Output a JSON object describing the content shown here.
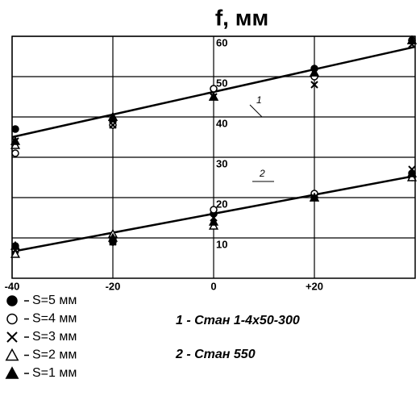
{
  "chart_data": {
    "type": "scatter",
    "title": "f, мм",
    "xlim": [
      -40,
      40
    ],
    "ylim": [
      0,
      60
    ],
    "xticks": [
      -40,
      -20,
      0,
      {
        "value": 20,
        "label": "+20"
      }
    ],
    "yticks": [
      10,
      20,
      30,
      40,
      50,
      60
    ],
    "grid": true,
    "x": [
      -40,
      -20,
      0,
      20,
      40,
      -40,
      -20,
      0,
      20,
      40
    ],
    "series": [
      {
        "name": "S=5 мм",
        "marker": "filled-circle",
        "color": "#000000",
        "values": [
          37,
          39,
          47,
          52,
          59,
          8,
          9,
          16,
          20,
          26
        ]
      },
      {
        "name": "S=4 мм",
        "marker": "circle",
        "color": "#000000",
        "values": [
          31,
          38,
          47,
          50,
          59,
          7,
          10,
          17,
          21,
          25
        ]
      },
      {
        "name": "S=3 мм",
        "marker": "x",
        "color": "#000000",
        "values": [
          34,
          38,
          45,
          48,
          58,
          7,
          9,
          15,
          20,
          27
        ]
      },
      {
        "name": "S=2 мм",
        "marker": "triangle",
        "color": "#000000",
        "values": [
          33,
          40,
          45,
          51,
          59,
          6,
          11,
          13,
          20,
          25
        ]
      },
      {
        "name": "S=1 мм",
        "marker": "filled-triangle",
        "color": "#000000",
        "values": [
          34,
          40,
          45,
          51,
          59,
          8,
          10,
          14,
          20,
          26
        ]
      }
    ],
    "fit_lines": [
      {
        "label": "1",
        "x": [
          -40,
          40
        ],
        "values": [
          35,
          57.4
        ],
        "caption": "1 - Стан 1-4х50-300"
      },
      {
        "label": "2",
        "x": [
          -40,
          40
        ],
        "values": [
          6.6,
          25.4
        ],
        "caption": "2 - Стан 550"
      }
    ]
  }
}
